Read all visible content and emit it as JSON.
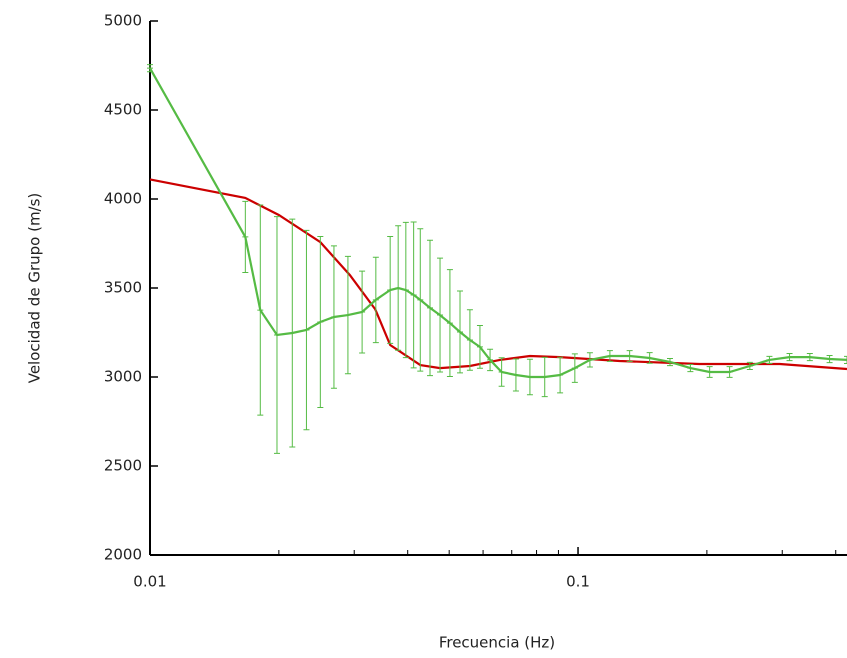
{
  "chart_data": {
    "type": "line",
    "x_label": "Frecuencia (Hz)",
    "y_label": "Velocidad de Grupo (m/s)",
    "xscale": "log",
    "xlim": [
      0.01,
      0.425
    ],
    "xticks": [
      0.01,
      0.1
    ],
    "xminorticks": [
      0.02,
      0.03,
      0.04,
      0.05,
      0.06,
      0.07,
      0.08,
      0.09,
      0.2,
      0.3,
      0.4
    ],
    "ylim": [
      2000,
      5000
    ],
    "yticks": [
      2000,
      2500,
      3000,
      3500,
      4000,
      4500,
      5000
    ],
    "series": [
      {
        "color": "#cc0000",
        "x": [
          0.01,
          0.0167,
          0.02,
          0.025,
          0.0293,
          0.0336,
          0.0364,
          0.0428,
          0.0476,
          0.0559,
          0.0657,
          0.0772,
          0.0908,
          0.125,
          0.192,
          0.296,
          0.425
        ],
        "values": [
          4110,
          4006,
          3910,
          3758,
          3573,
          3380,
          3180,
          3067,
          3050,
          3062,
          3096,
          3118,
          3112,
          3090,
          3073,
          3073,
          3045
        ]
      },
      {
        "color": "#55bb44",
        "x": [
          0.01,
          0.0167,
          0.0181,
          0.0198,
          0.0215,
          0.0232,
          0.025,
          0.0269,
          0.029,
          0.0313,
          0.0337,
          0.0364,
          0.038,
          0.0396,
          0.0413,
          0.0428,
          0.0451,
          0.0476,
          0.0502,
          0.053,
          0.0559,
          0.059,
          0.0623,
          0.0663,
          0.0716,
          0.0772,
          0.0836,
          0.0908,
          0.0983,
          0.1066,
          0.1187,
          0.132,
          0.147,
          0.164,
          0.183,
          0.203,
          0.226,
          0.252,
          0.28,
          0.312,
          0.348,
          0.387,
          0.425
        ],
        "values": [
          4735,
          3787,
          3376,
          3236,
          3247,
          3264,
          3309,
          3337,
          3348,
          3365,
          3433,
          3489,
          3500,
          3489,
          3461,
          3433,
          3388,
          3348,
          3303,
          3253,
          3208,
          3169,
          3096,
          3028,
          3011,
          3000,
          3000,
          3011,
          3050,
          3096,
          3118,
          3118,
          3107,
          3084,
          3050,
          3028,
          3028,
          3062,
          3096,
          3112,
          3112,
          3101,
          3096
        ],
        "errors": [
          20,
          200,
          590,
          665,
          640,
          560,
          480,
          400,
          330,
          230,
          240,
          300,
          350,
          380,
          410,
          400,
          380,
          320,
          300,
          230,
          170,
          120,
          60,
          80,
          90,
          100,
          110,
          100,
          80,
          40,
          30,
          30,
          30,
          20,
          20,
          30,
          30,
          20,
          20,
          20,
          20,
          20,
          20
        ]
      }
    ]
  }
}
